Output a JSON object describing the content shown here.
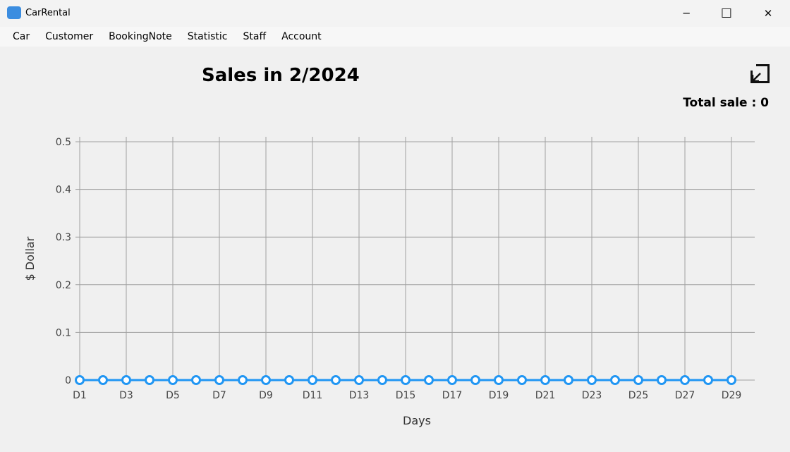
{
  "window": {
    "title": "CarRental",
    "minimize": "─",
    "maximize": "☐",
    "close": "✕"
  },
  "menu": [
    "Car",
    "Customer",
    "BookingNote",
    "Statistic",
    "Staff",
    "Account"
  ],
  "heading": "Sales in 2/2024",
  "total_sale": "Total sale : 0",
  "icons": {
    "app": "car-icon",
    "resize": "resize-arrow-icon"
  },
  "chart_data": {
    "type": "line",
    "xlabel": "Days",
    "ylabel": "$ Dollar",
    "ylim": [
      0,
      0.5
    ],
    "yticks": [
      "0",
      "0.1",
      "0.2",
      "0.3",
      "0.4",
      "0.5"
    ],
    "x": [
      "D1",
      "D2",
      "D3",
      "D4",
      "D5",
      "D6",
      "D7",
      "D8",
      "D9",
      "D10",
      "D11",
      "D12",
      "D13",
      "D14",
      "D15",
      "D16",
      "D17",
      "D18",
      "D19",
      "D20",
      "D21",
      "D22",
      "D23",
      "D24",
      "D25",
      "D26",
      "D27",
      "D28",
      "D29"
    ],
    "values": [
      0,
      0,
      0,
      0,
      0,
      0,
      0,
      0,
      0,
      0,
      0,
      0,
      0,
      0,
      0,
      0,
      0,
      0,
      0,
      0,
      0,
      0,
      0,
      0,
      0,
      0,
      0,
      0,
      0
    ],
    "grid": true,
    "color": "#2196f3"
  }
}
